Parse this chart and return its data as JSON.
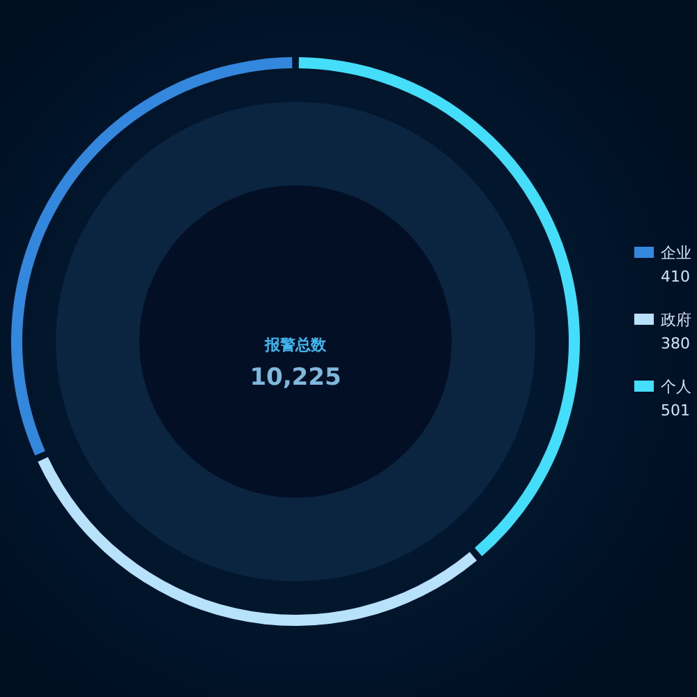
{
  "chart_data": {
    "type": "donut",
    "title": "报警总数",
    "subtitle": "10,225",
    "categories": [
      "企业",
      "政府",
      "个人"
    ],
    "values": [
      410,
      380,
      501
    ],
    "colors": [
      "#3388dd",
      "#b8e2fb",
      "#44ddfa"
    ],
    "data_labels": true,
    "legend": "right"
  }
}
